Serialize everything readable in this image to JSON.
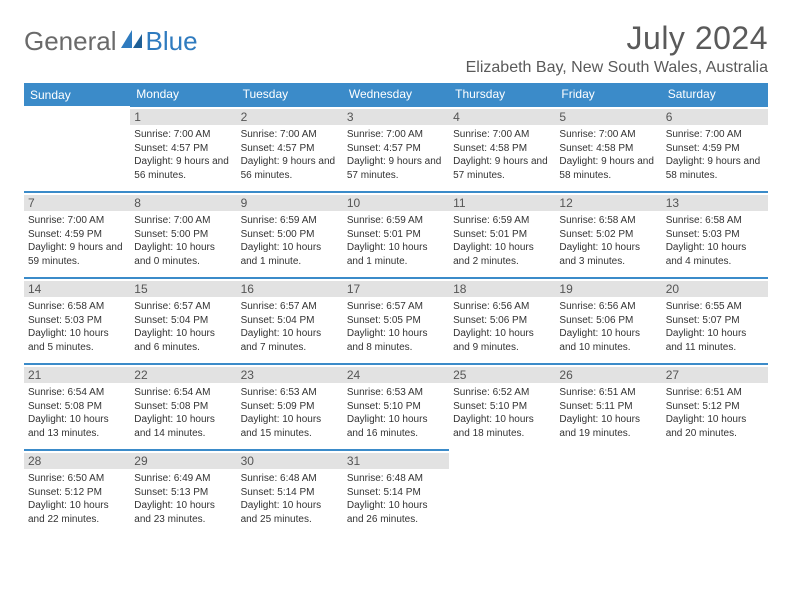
{
  "brand": {
    "part1": "General",
    "part2": "Blue"
  },
  "title": "July 2024",
  "location": "Elizabeth Bay, New South Wales, Australia",
  "colors": {
    "header_bg": "#3b8bc9",
    "header_text": "#ffffff",
    "daynum_bg": "#e2e2e2",
    "border": "#3b8bc9",
    "logo_gray": "#6a6a6a",
    "logo_blue": "#2f7bbf"
  },
  "day_headers": [
    "Sunday",
    "Monday",
    "Tuesday",
    "Wednesday",
    "Thursday",
    "Friday",
    "Saturday"
  ],
  "weeks": [
    [
      null,
      {
        "n": "1",
        "sr": "7:00 AM",
        "ss": "4:57 PM",
        "dl": "9 hours and 56 minutes."
      },
      {
        "n": "2",
        "sr": "7:00 AM",
        "ss": "4:57 PM",
        "dl": "9 hours and 56 minutes."
      },
      {
        "n": "3",
        "sr": "7:00 AM",
        "ss": "4:57 PM",
        "dl": "9 hours and 57 minutes."
      },
      {
        "n": "4",
        "sr": "7:00 AM",
        "ss": "4:58 PM",
        "dl": "9 hours and 57 minutes."
      },
      {
        "n": "5",
        "sr": "7:00 AM",
        "ss": "4:58 PM",
        "dl": "9 hours and 58 minutes."
      },
      {
        "n": "6",
        "sr": "7:00 AM",
        "ss": "4:59 PM",
        "dl": "9 hours and 58 minutes."
      }
    ],
    [
      {
        "n": "7",
        "sr": "7:00 AM",
        "ss": "4:59 PM",
        "dl": "9 hours and 59 minutes."
      },
      {
        "n": "8",
        "sr": "7:00 AM",
        "ss": "5:00 PM",
        "dl": "10 hours and 0 minutes."
      },
      {
        "n": "9",
        "sr": "6:59 AM",
        "ss": "5:00 PM",
        "dl": "10 hours and 1 minute."
      },
      {
        "n": "10",
        "sr": "6:59 AM",
        "ss": "5:01 PM",
        "dl": "10 hours and 1 minute."
      },
      {
        "n": "11",
        "sr": "6:59 AM",
        "ss": "5:01 PM",
        "dl": "10 hours and 2 minutes."
      },
      {
        "n": "12",
        "sr": "6:58 AM",
        "ss": "5:02 PM",
        "dl": "10 hours and 3 minutes."
      },
      {
        "n": "13",
        "sr": "6:58 AM",
        "ss": "5:03 PM",
        "dl": "10 hours and 4 minutes."
      }
    ],
    [
      {
        "n": "14",
        "sr": "6:58 AM",
        "ss": "5:03 PM",
        "dl": "10 hours and 5 minutes."
      },
      {
        "n": "15",
        "sr": "6:57 AM",
        "ss": "5:04 PM",
        "dl": "10 hours and 6 minutes."
      },
      {
        "n": "16",
        "sr": "6:57 AM",
        "ss": "5:04 PM",
        "dl": "10 hours and 7 minutes."
      },
      {
        "n": "17",
        "sr": "6:57 AM",
        "ss": "5:05 PM",
        "dl": "10 hours and 8 minutes."
      },
      {
        "n": "18",
        "sr": "6:56 AM",
        "ss": "5:06 PM",
        "dl": "10 hours and 9 minutes."
      },
      {
        "n": "19",
        "sr": "6:56 AM",
        "ss": "5:06 PM",
        "dl": "10 hours and 10 minutes."
      },
      {
        "n": "20",
        "sr": "6:55 AM",
        "ss": "5:07 PM",
        "dl": "10 hours and 11 minutes."
      }
    ],
    [
      {
        "n": "21",
        "sr": "6:54 AM",
        "ss": "5:08 PM",
        "dl": "10 hours and 13 minutes."
      },
      {
        "n": "22",
        "sr": "6:54 AM",
        "ss": "5:08 PM",
        "dl": "10 hours and 14 minutes."
      },
      {
        "n": "23",
        "sr": "6:53 AM",
        "ss": "5:09 PM",
        "dl": "10 hours and 15 minutes."
      },
      {
        "n": "24",
        "sr": "6:53 AM",
        "ss": "5:10 PM",
        "dl": "10 hours and 16 minutes."
      },
      {
        "n": "25",
        "sr": "6:52 AM",
        "ss": "5:10 PM",
        "dl": "10 hours and 18 minutes."
      },
      {
        "n": "26",
        "sr": "6:51 AM",
        "ss": "5:11 PM",
        "dl": "10 hours and 19 minutes."
      },
      {
        "n": "27",
        "sr": "6:51 AM",
        "ss": "5:12 PM",
        "dl": "10 hours and 20 minutes."
      }
    ],
    [
      {
        "n": "28",
        "sr": "6:50 AM",
        "ss": "5:12 PM",
        "dl": "10 hours and 22 minutes."
      },
      {
        "n": "29",
        "sr": "6:49 AM",
        "ss": "5:13 PM",
        "dl": "10 hours and 23 minutes."
      },
      {
        "n": "30",
        "sr": "6:48 AM",
        "ss": "5:14 PM",
        "dl": "10 hours and 25 minutes."
      },
      {
        "n": "31",
        "sr": "6:48 AM",
        "ss": "5:14 PM",
        "dl": "10 hours and 26 minutes."
      },
      null,
      null,
      null
    ]
  ]
}
